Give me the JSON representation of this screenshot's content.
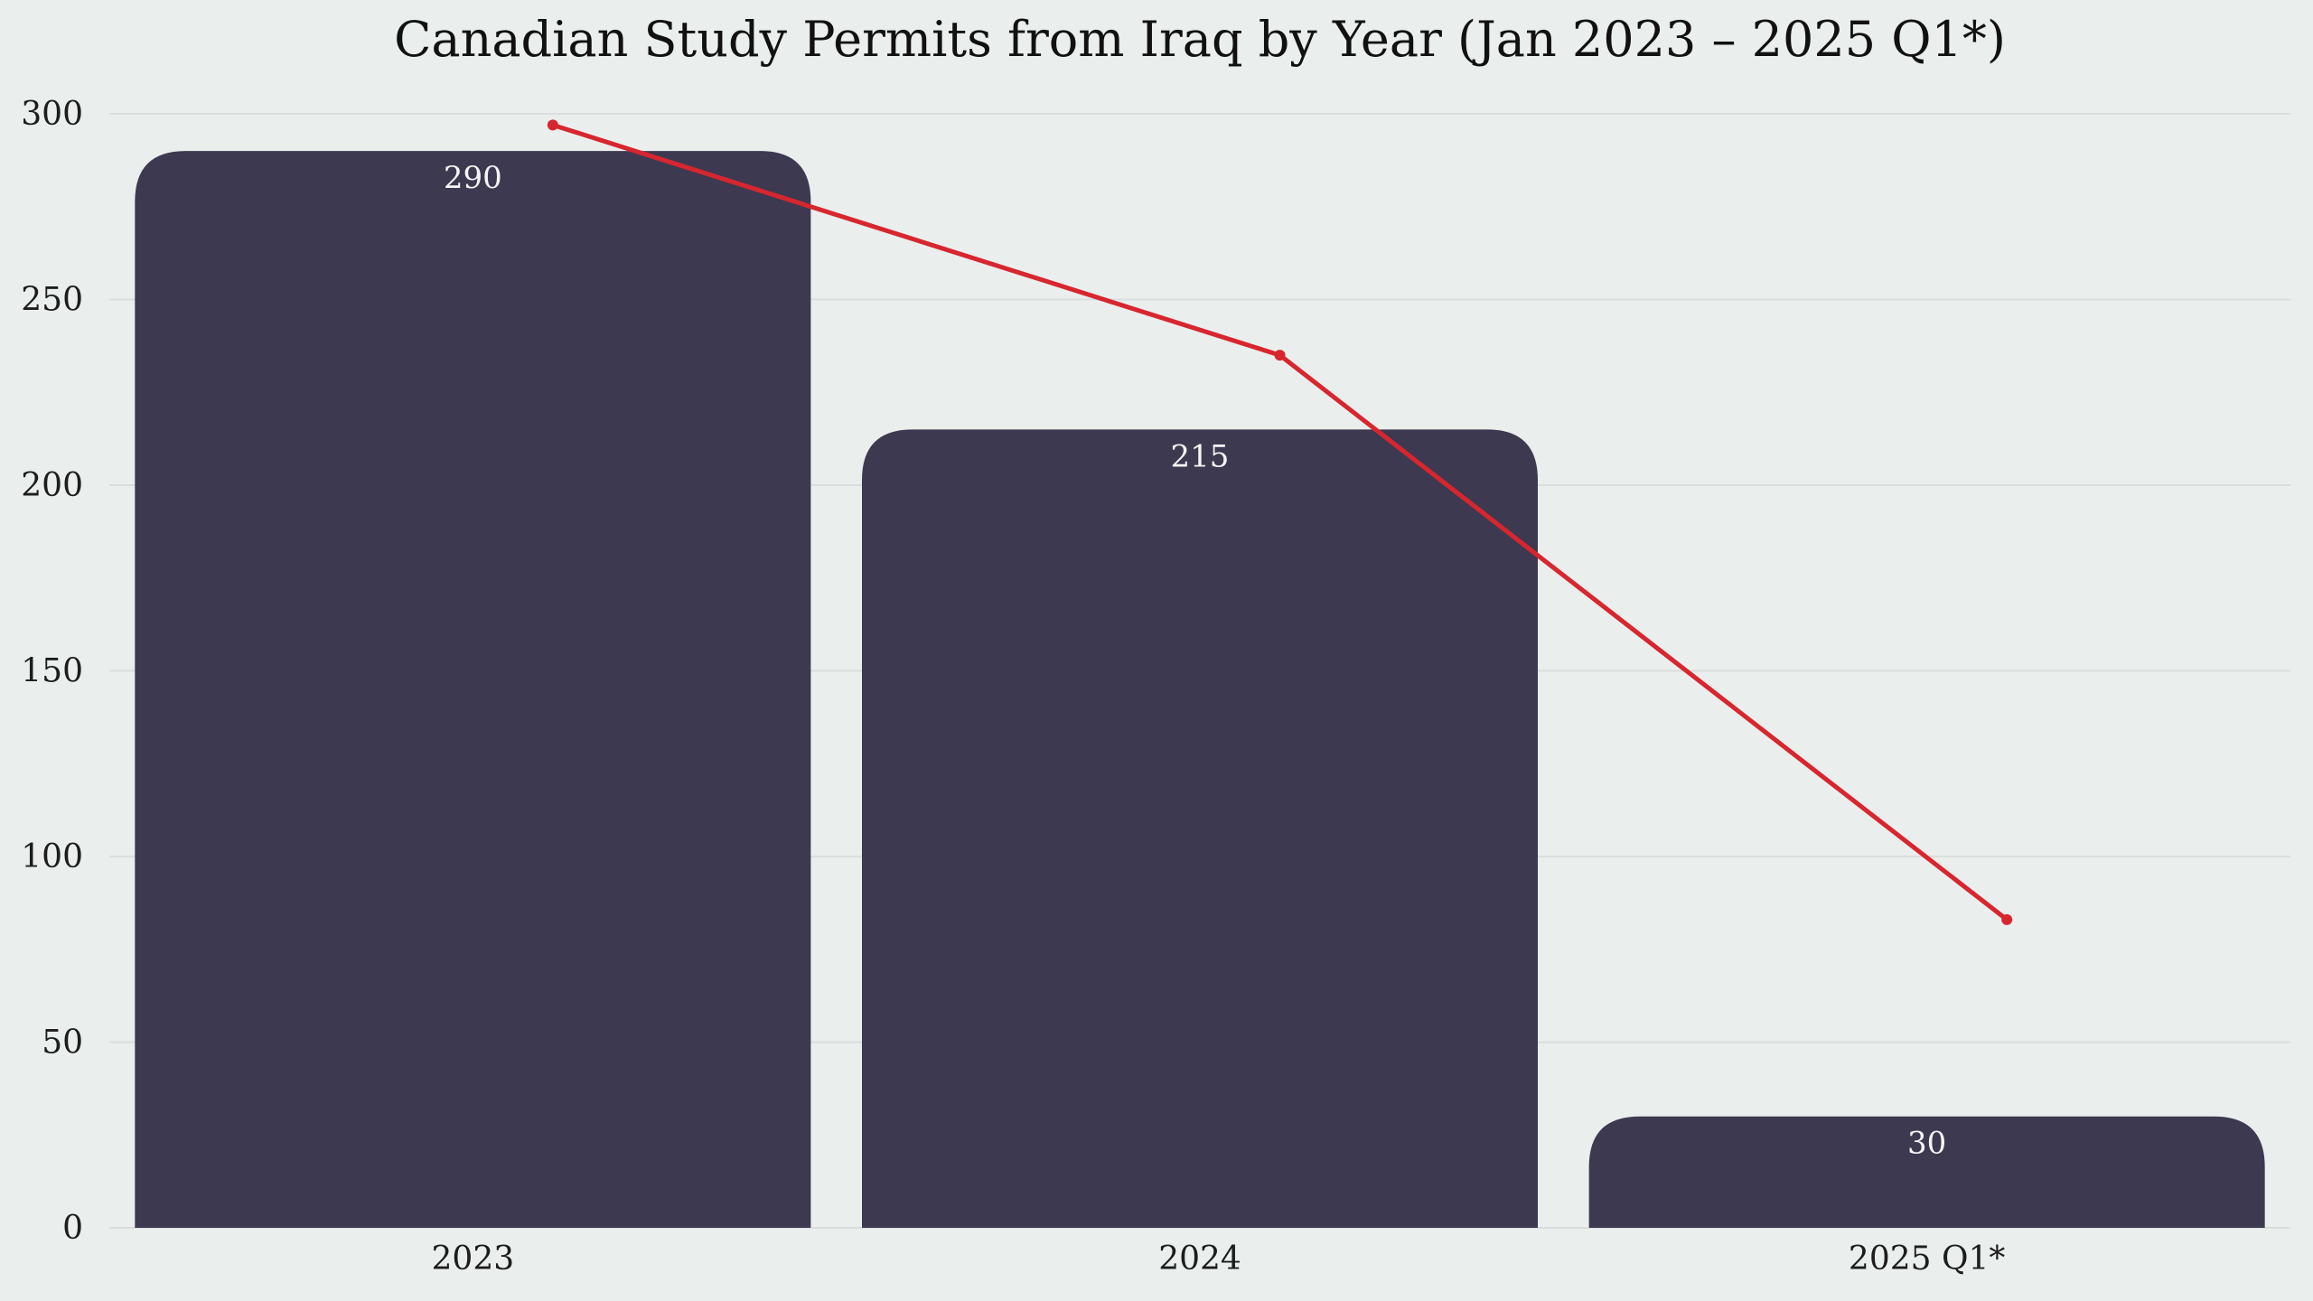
{
  "chart_data": {
    "type": "bar",
    "title": "Canadian Study Permits from Iraq by Year (Jan 2023 – 2025 Q1*)",
    "categories": [
      "2023",
      "2024",
      "2025 Q1*"
    ],
    "series": [
      {
        "type": "bar",
        "values": [
          290,
          215,
          30
        ],
        "color": "#3D3950"
      },
      {
        "type": "line",
        "values": [
          297,
          235,
          83
        ],
        "color": "#D7262F"
      }
    ],
    "data_labels": [
      "290",
      "215",
      "30"
    ],
    "xlabel": "",
    "ylabel": "",
    "ylim": [
      0,
      300
    ],
    "yticks": [
      0,
      50,
      100,
      150,
      200,
      250,
      300
    ],
    "grid": true,
    "legend": "none"
  }
}
